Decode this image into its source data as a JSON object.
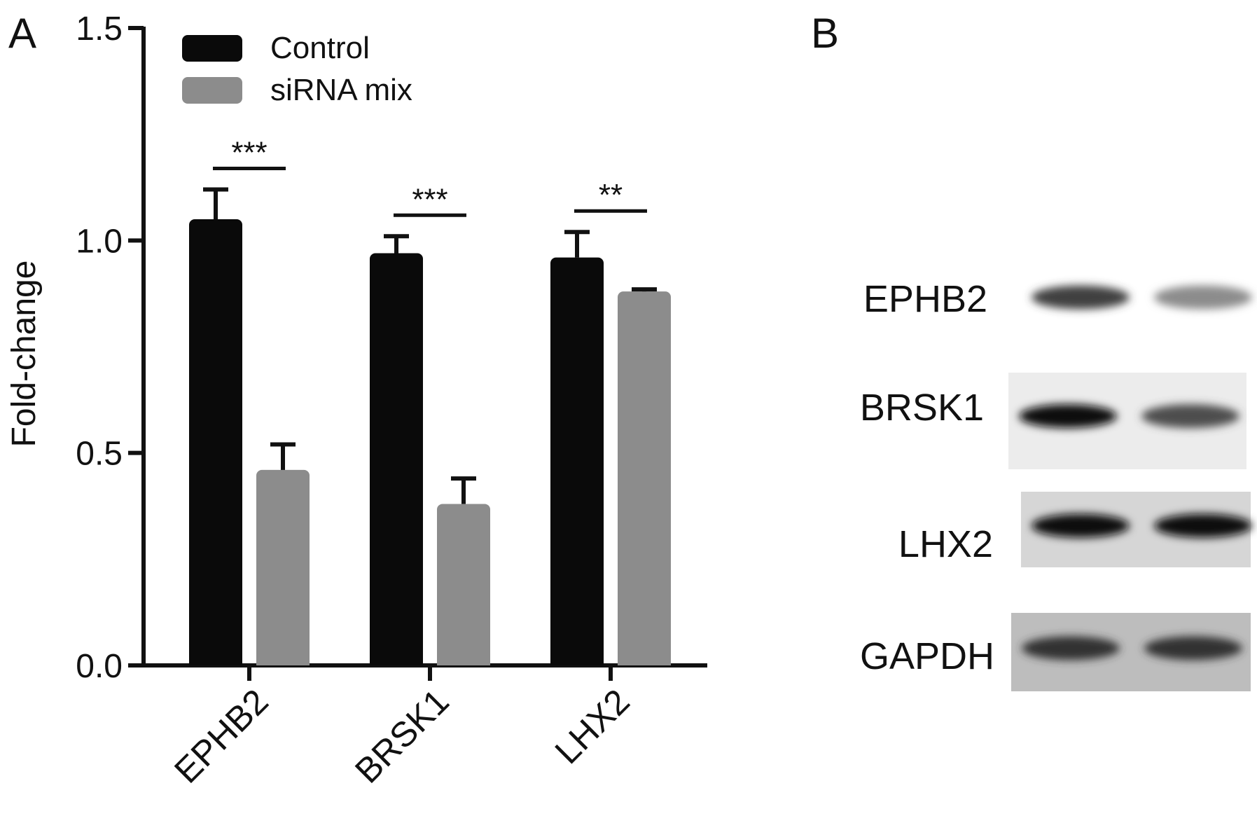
{
  "panel_labels": {
    "a": "A",
    "b": "B"
  },
  "chart_data": {
    "type": "bar",
    "categories": [
      "EPHB2",
      "BRSK1",
      "LHX2"
    ],
    "series": [
      {
        "name": "Control",
        "values": [
          1.05,
          0.97,
          0.96
        ],
        "errors": [
          0.07,
          0.04,
          0.06
        ],
        "color": "#0a0a0a"
      },
      {
        "name": "siRNA mix",
        "values": [
          0.46,
          0.38,
          0.88
        ],
        "errors": [
          0.06,
          0.06,
          0.005
        ],
        "color": "#8c8c8c"
      }
    ],
    "significance": [
      "***",
      "***",
      "**"
    ],
    "title": "",
    "xlabel": "",
    "ylabel": "Fold-change",
    "ylim": [
      0,
      1.5
    ],
    "yticks": [
      "0.0",
      "0.5",
      "1.0",
      "1.5"
    ],
    "legend_position": "top-left",
    "grid": false
  },
  "western_blot": {
    "rows": [
      {
        "label": "EPHB2",
        "lane_intensities": [
          0.75,
          0.45
        ]
      },
      {
        "label": "BRSK1",
        "lane_intensities": [
          0.95,
          0.7
        ]
      },
      {
        "label": "LHX2",
        "lane_intensities": [
          0.95,
          0.95
        ]
      },
      {
        "label": "GAPDH",
        "lane_intensities": [
          0.8,
          0.8
        ]
      }
    ]
  }
}
